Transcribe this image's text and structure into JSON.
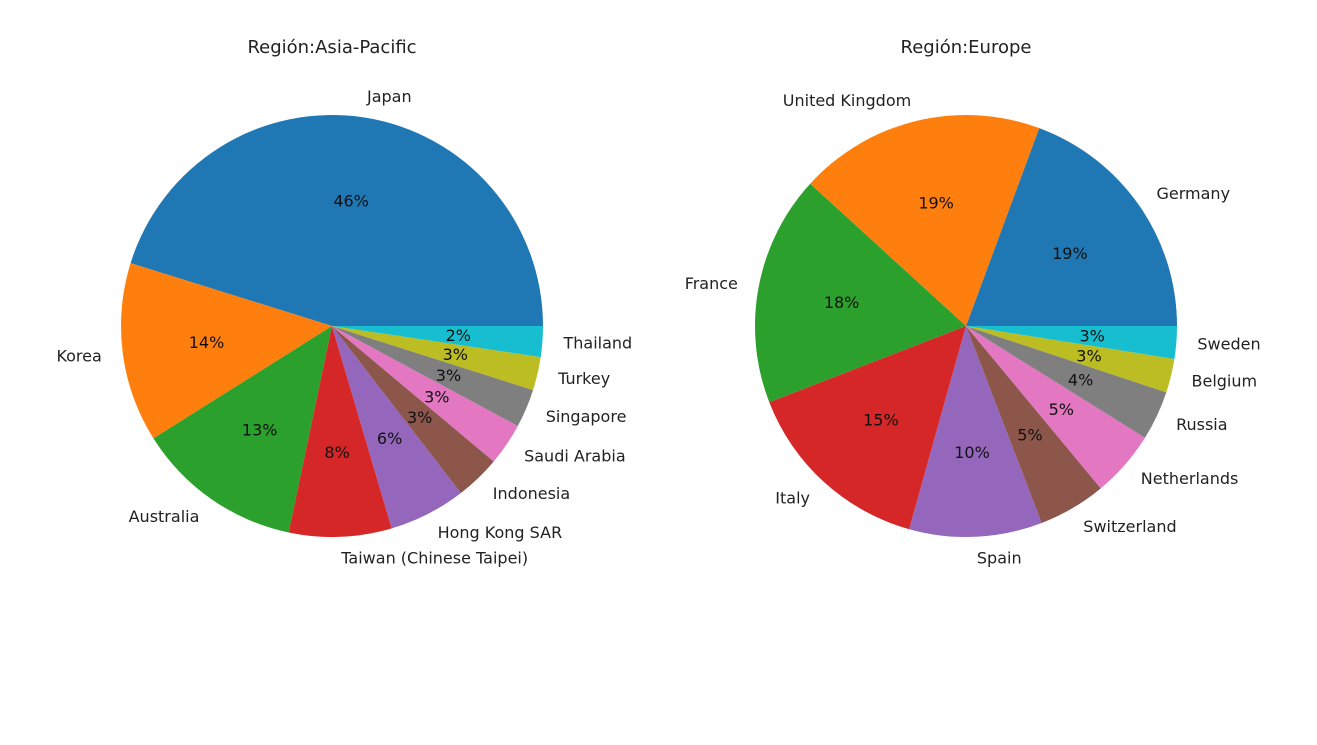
{
  "chart_data": [
    {
      "type": "pie",
      "title": "Región:Asia-Pacific",
      "start_angle_deg": 0,
      "direction": "counterclockwise",
      "slices": [
        {
          "label": "Japan",
          "value": 46,
          "pct_label": "46%",
          "color": "#1f77b4"
        },
        {
          "label": "Korea",
          "value": 14,
          "pct_label": "14%",
          "color": "#ff7f0e"
        },
        {
          "label": "Australia",
          "value": 13,
          "pct_label": "13%",
          "color": "#2ca02c"
        },
        {
          "label": "Taiwan (Chinese Taipei)",
          "value": 8,
          "pct_label": "8%",
          "color": "#d62728"
        },
        {
          "label": "Hong Kong SAR",
          "value": 6,
          "pct_label": "6%",
          "color": "#9467bd"
        },
        {
          "label": "Indonesia",
          "value": 3.5,
          "pct_label": "3%",
          "color": "#8c564b"
        },
        {
          "label": "Saudi Arabia",
          "value": 3.3,
          "pct_label": "3%",
          "color": "#e377c2"
        },
        {
          "label": "Singapore",
          "value": 3,
          "pct_label": "3%",
          "color": "#7f7f7f"
        },
        {
          "label": "Turkey",
          "value": 2.6,
          "pct_label": "3%",
          "color": "#bcbd22"
        },
        {
          "label": "Thailand",
          "value": 2.4,
          "pct_label": "2%",
          "color": "#17becf"
        }
      ]
    },
    {
      "type": "pie",
      "title": "Región:Europe",
      "start_angle_deg": 0,
      "direction": "counterclockwise",
      "slices": [
        {
          "label": "Germany",
          "value": 19.4,
          "pct_label": "19%",
          "color": "#1f77b4"
        },
        {
          "label": "United Kingdom",
          "value": 18.9,
          "pct_label": "19%",
          "color": "#ff7f0e"
        },
        {
          "label": "France",
          "value": 17.7,
          "pct_label": "18%",
          "color": "#2ca02c"
        },
        {
          "label": "Italy",
          "value": 14.8,
          "pct_label": "15%",
          "color": "#d62728"
        },
        {
          "label": "Spain",
          "value": 10.2,
          "pct_label": "10%",
          "color": "#9467bd"
        },
        {
          "label": "Switzerland",
          "value": 5.2,
          "pct_label": "5%",
          "color": "#8c564b"
        },
        {
          "label": "Netherlands",
          "value": 5.1,
          "pct_label": "5%",
          "color": "#e377c2"
        },
        {
          "label": "Russia",
          "value": 3.8,
          "pct_label": "4%",
          "color": "#7f7f7f"
        },
        {
          "label": "Belgium",
          "value": 2.6,
          "pct_label": "3%",
          "color": "#bcbd22"
        },
        {
          "label": "Sweden",
          "value": 2.5,
          "pct_label": "3%",
          "color": "#17becf"
        }
      ]
    }
  ]
}
